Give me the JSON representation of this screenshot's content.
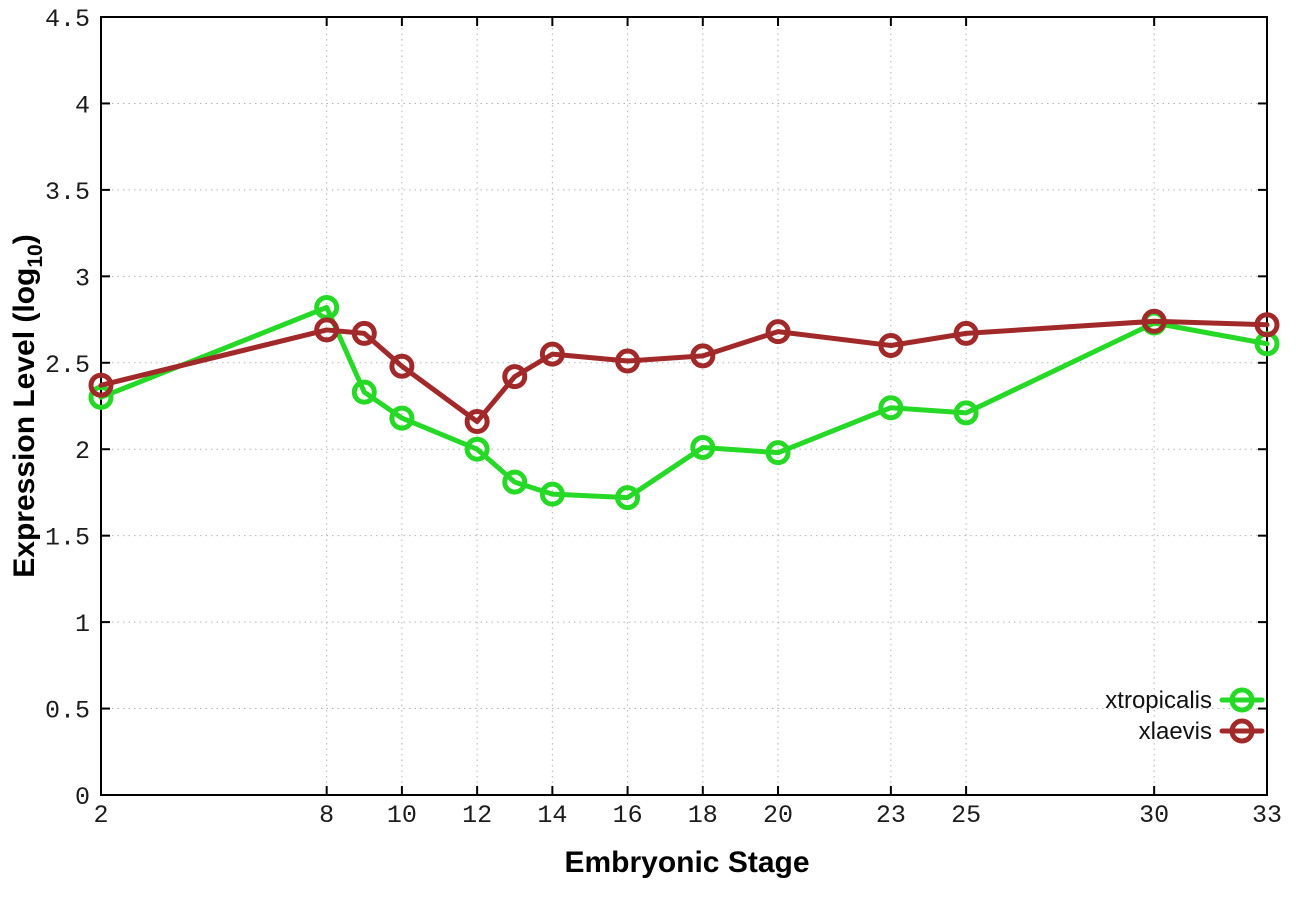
{
  "figure": {
    "background_color": "#ffffff",
    "border_color": "#000000",
    "grid_color": "#b5b5b5"
  },
  "chart_data": {
    "type": "line",
    "title": "",
    "xlabel": "Embryonic Stage",
    "ylabel": "Expression Level (log10)",
    "ylabel_parts": {
      "main": "Expression Level (log",
      "sub": "10",
      "close": ")"
    },
    "x": [
      2,
      8,
      9,
      10,
      12,
      13,
      14,
      16,
      18,
      20,
      23,
      25,
      30,
      33
    ],
    "xticks": [
      2,
      8,
      10,
      12,
      14,
      16,
      18,
      20,
      23,
      25,
      30,
      33
    ],
    "yticks": [
      0,
      0.5,
      1,
      1.5,
      2,
      2.5,
      3,
      3.5,
      4,
      4.5
    ],
    "ytick_labels": [
      "0",
      "0.5",
      "1",
      "1.5",
      "2",
      "2.5",
      "3",
      "3.5",
      "4",
      "4.5"
    ],
    "xlim": [
      2,
      33
    ],
    "ylim": [
      0,
      4.5
    ],
    "grid": true,
    "grid_style": "dotted",
    "legend_position": "bottom-right",
    "series": [
      {
        "name": "xtropicalis",
        "color": "#26d926",
        "marker": "open-circle",
        "values": [
          2.3,
          2.82,
          2.33,
          2.18,
          2.0,
          1.81,
          1.74,
          1.72,
          2.01,
          1.98,
          2.24,
          2.21,
          2.73,
          2.61
        ]
      },
      {
        "name": "xlaevis",
        "color": "#a12929",
        "marker": "open-circle",
        "values": [
          2.37,
          2.69,
          2.67,
          2.48,
          2.16,
          2.42,
          2.55,
          2.51,
          2.54,
          2.68,
          2.6,
          2.67,
          2.74,
          2.72
        ]
      }
    ]
  }
}
